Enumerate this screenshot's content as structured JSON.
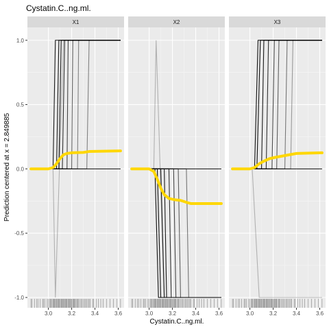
{
  "chart_data": {
    "type": "line",
    "title": "Cystatin.C..ng.ml.",
    "xlabel": "Cystatin.C..ng.ml.",
    "ylabel": "Prediction centered at x = 2.849885",
    "xlim": [
      2.82,
      3.65
    ],
    "ylim": [
      -1.08,
      1.1
    ],
    "x_ticks": [
      3.0,
      3.2,
      3.4,
      3.6
    ],
    "x_tick_labels": [
      "3.0",
      "3.2",
      "3.4",
      "3.6"
    ],
    "y_ticks": [
      -1.0,
      -0.5,
      0.0,
      0.5,
      1.0
    ],
    "y_tick_labels": [
      "-1.0",
      "-0.5",
      "0.0",
      "0.5",
      "1.0"
    ],
    "grid": true,
    "colors": {
      "panel_bg": "#ebebeb",
      "strip_bg": "#d9d9d9",
      "grid_major": "#ffffff",
      "ice_line": "#000000",
      "pdp_line": "#ffd700",
      "rug": "#000000"
    },
    "panels": [
      {
        "label": "X1",
        "ice_curves": [
          {
            "opacity": 0.9,
            "points": [
              [
                2.85,
                0
              ],
              [
                3.04,
                0
              ],
              [
                3.06,
                1
              ],
              [
                3.62,
                1
              ]
            ]
          },
          {
            "opacity": 0.9,
            "points": [
              [
                2.85,
                0
              ],
              [
                3.07,
                0
              ],
              [
                3.09,
                1
              ],
              [
                3.62,
                1
              ]
            ]
          },
          {
            "opacity": 0.9,
            "points": [
              [
                2.85,
                0
              ],
              [
                3.09,
                0
              ],
              [
                3.11,
                1
              ],
              [
                3.62,
                1
              ]
            ]
          },
          {
            "opacity": 0.8,
            "points": [
              [
                2.85,
                0
              ],
              [
                3.12,
                0
              ],
              [
                3.14,
                1
              ],
              [
                3.62,
                1
              ]
            ]
          },
          {
            "opacity": 0.7,
            "points": [
              [
                2.85,
                0
              ],
              [
                3.16,
                0
              ],
              [
                3.17,
                1
              ],
              [
                3.62,
                1
              ]
            ]
          },
          {
            "opacity": 0.6,
            "points": [
              [
                2.85,
                0
              ],
              [
                3.2,
                0
              ],
              [
                3.21,
                1
              ],
              [
                3.62,
                1
              ]
            ]
          },
          {
            "opacity": 0.45,
            "points": [
              [
                2.85,
                0
              ],
              [
                3.25,
                0
              ],
              [
                3.26,
                1
              ],
              [
                3.62,
                1
              ]
            ]
          },
          {
            "opacity": 0.45,
            "points": [
              [
                2.85,
                0
              ],
              [
                3.33,
                0
              ],
              [
                3.35,
                1
              ],
              [
                3.62,
                1
              ]
            ]
          },
          {
            "opacity": 0.25,
            "points": [
              [
                2.85,
                0
              ],
              [
                3.04,
                0
              ],
              [
                3.06,
                -1
              ],
              [
                3.13,
                1
              ],
              [
                3.62,
                1
              ]
            ]
          },
          {
            "opacity": 0.95,
            "points": [
              [
                2.85,
                0
              ],
              [
                3.62,
                0
              ]
            ]
          }
        ],
        "pdp": [
          [
            2.85,
            0
          ],
          [
            3.0,
            0
          ],
          [
            3.04,
            0.01
          ],
          [
            3.07,
            0.04
          ],
          [
            3.1,
            0.08
          ],
          [
            3.13,
            0.11
          ],
          [
            3.16,
            0.12
          ],
          [
            3.2,
            0.125
          ],
          [
            3.3,
            0.128
          ],
          [
            3.35,
            0.135
          ],
          [
            3.62,
            0.14
          ]
        ]
      },
      {
        "label": "X2",
        "ice_curves": [
          {
            "opacity": 0.95,
            "points": [
              [
                2.85,
                0
              ],
              [
                3.05,
                0
              ],
              [
                3.08,
                -1
              ],
              [
                3.62,
                -1
              ]
            ]
          },
          {
            "opacity": 0.95,
            "points": [
              [
                2.85,
                0
              ],
              [
                3.07,
                0
              ],
              [
                3.1,
                -1
              ],
              [
                3.62,
                -1
              ]
            ]
          },
          {
            "opacity": 0.9,
            "points": [
              [
                2.85,
                0
              ],
              [
                3.1,
                0
              ],
              [
                3.13,
                -1
              ],
              [
                3.62,
                -1
              ]
            ]
          },
          {
            "opacity": 0.9,
            "points": [
              [
                2.85,
                0
              ],
              [
                3.13,
                0
              ],
              [
                3.15,
                -1
              ],
              [
                3.62,
                -1
              ]
            ]
          },
          {
            "opacity": 0.8,
            "points": [
              [
                2.85,
                0
              ],
              [
                3.17,
                0
              ],
              [
                3.19,
                -1
              ],
              [
                3.62,
                -1
              ]
            ]
          },
          {
            "opacity": 0.7,
            "points": [
              [
                2.85,
                0
              ],
              [
                3.21,
                0
              ],
              [
                3.23,
                -1
              ],
              [
                3.62,
                -1
              ]
            ]
          },
          {
            "opacity": 0.6,
            "points": [
              [
                2.85,
                0
              ],
              [
                3.25,
                0
              ],
              [
                3.27,
                -1
              ],
              [
                3.62,
                -1
              ]
            ]
          },
          {
            "opacity": 0.5,
            "points": [
              [
                2.85,
                0
              ],
              [
                3.32,
                0
              ],
              [
                3.34,
                -1
              ],
              [
                3.62,
                -1
              ]
            ]
          },
          {
            "opacity": 0.25,
            "points": [
              [
                2.85,
                0
              ],
              [
                3.04,
                0
              ],
              [
                3.06,
                1
              ],
              [
                3.13,
                -1
              ],
              [
                3.62,
                -1
              ]
            ]
          },
          {
            "opacity": 0.95,
            "points": [
              [
                2.85,
                0
              ],
              [
                3.62,
                0
              ]
            ]
          }
        ],
        "pdp": [
          [
            2.85,
            0
          ],
          [
            3.0,
            0
          ],
          [
            3.04,
            -0.02
          ],
          [
            3.07,
            -0.08
          ],
          [
            3.1,
            -0.15
          ],
          [
            3.13,
            -0.2
          ],
          [
            3.17,
            -0.23
          ],
          [
            3.22,
            -0.24
          ],
          [
            3.27,
            -0.245
          ],
          [
            3.32,
            -0.26
          ],
          [
            3.36,
            -0.27
          ],
          [
            3.62,
            -0.27
          ]
        ]
      },
      {
        "label": "X3",
        "ice_curves": [
          {
            "opacity": 0.95,
            "points": [
              [
                2.85,
                0
              ],
              [
                3.04,
                0
              ],
              [
                3.07,
                1
              ],
              [
                3.62,
                1
              ]
            ]
          },
          {
            "opacity": 0.95,
            "points": [
              [
                2.85,
                0
              ],
              [
                3.06,
                0
              ],
              [
                3.09,
                1
              ],
              [
                3.62,
                1
              ]
            ]
          },
          {
            "opacity": 0.9,
            "points": [
              [
                2.85,
                0
              ],
              [
                3.1,
                0
              ],
              [
                3.12,
                1
              ],
              [
                3.62,
                1
              ]
            ]
          },
          {
            "opacity": 0.8,
            "points": [
              [
                2.85,
                0
              ],
              [
                3.14,
                0
              ],
              [
                3.16,
                1
              ],
              [
                3.62,
                1
              ]
            ]
          },
          {
            "opacity": 0.7,
            "points": [
              [
                2.85,
                0
              ],
              [
                3.19,
                0
              ],
              [
                3.21,
                1
              ],
              [
                3.62,
                1
              ]
            ]
          },
          {
            "opacity": 0.6,
            "points": [
              [
                2.85,
                0
              ],
              [
                3.23,
                0
              ],
              [
                3.25,
                1
              ],
              [
                3.62,
                1
              ]
            ]
          },
          {
            "opacity": 0.5,
            "points": [
              [
                2.85,
                0
              ],
              [
                3.3,
                0
              ],
              [
                3.32,
                1
              ],
              [
                3.62,
                1
              ]
            ]
          },
          {
            "opacity": 0.35,
            "points": [
              [
                2.85,
                0
              ],
              [
                3.35,
                0
              ],
              [
                3.37,
                1
              ],
              [
                3.62,
                1
              ]
            ]
          },
          {
            "opacity": 0.25,
            "points": [
              [
                2.85,
                0
              ],
              [
                3.02,
                0
              ],
              [
                3.08,
                -1
              ],
              [
                3.62,
                -1
              ]
            ]
          },
          {
            "opacity": 0.95,
            "points": [
              [
                2.85,
                0
              ],
              [
                3.62,
                0
              ]
            ]
          }
        ],
        "pdp": [
          [
            2.85,
            0
          ],
          [
            3.0,
            0
          ],
          [
            3.04,
            0.01
          ],
          [
            3.08,
            0.04
          ],
          [
            3.12,
            0.06
          ],
          [
            3.17,
            0.08
          ],
          [
            3.22,
            0.09
          ],
          [
            3.28,
            0.1
          ],
          [
            3.34,
            0.11
          ],
          [
            3.4,
            0.12
          ],
          [
            3.62,
            0.125
          ]
        ]
      }
    ],
    "rug_x": [
      2.85,
      2.86,
      2.88,
      2.9,
      2.91,
      2.93,
      2.95,
      2.96,
      2.97,
      2.99,
      3.0,
      3.01,
      3.02,
      3.02,
      3.03,
      3.04,
      3.04,
      3.05,
      3.05,
      3.06,
      3.06,
      3.07,
      3.07,
      3.08,
      3.08,
      3.09,
      3.09,
      3.1,
      3.1,
      3.11,
      3.11,
      3.12,
      3.12,
      3.13,
      3.13,
      3.14,
      3.14,
      3.15,
      3.15,
      3.16,
      3.16,
      3.17,
      3.17,
      3.18,
      3.18,
      3.19,
      3.19,
      3.2,
      3.2,
      3.21,
      3.21,
      3.22,
      3.22,
      3.23,
      3.23,
      3.24,
      3.25,
      3.25,
      3.26,
      3.27,
      3.28,
      3.29,
      3.3,
      3.31,
      3.32,
      3.33,
      3.34,
      3.35,
      3.36,
      3.38,
      3.39,
      3.41,
      3.43,
      3.45,
      3.47,
      3.5,
      3.53,
      3.56,
      3.59,
      3.62
    ]
  }
}
